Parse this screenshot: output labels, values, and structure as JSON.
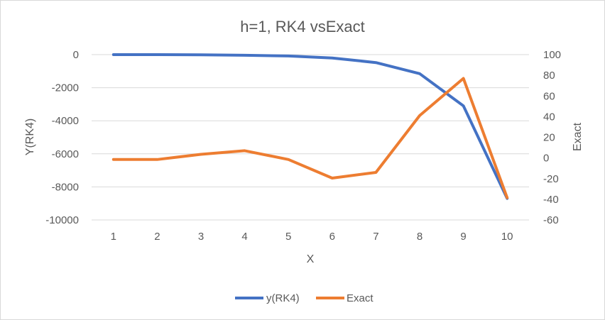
{
  "chart_data": {
    "type": "line",
    "title": "h=1, RK4 vsExact",
    "xlabel": "X",
    "ylabel": "Y(RK4)",
    "y2label": "Exact",
    "categories": [
      "1",
      "2",
      "3",
      "4",
      "5",
      "6",
      "7",
      "8",
      "9",
      "10"
    ],
    "ylim": [
      -10000,
      0
    ],
    "y_ticks": [
      0,
      -2000,
      -4000,
      -6000,
      -8000,
      -10000
    ],
    "y2lim": [
      -60,
      100
    ],
    "y2_ticks": [
      100,
      80,
      60,
      40,
      20,
      0,
      -20,
      -40,
      -60
    ],
    "grid": true,
    "legend": "bottom",
    "series": [
      {
        "name": "y(RK4)",
        "axis": "left",
        "color": "#4472c4",
        "values": [
          0,
          -2,
          -12,
          -40,
          -80,
          -200,
          -480,
          -1150,
          -3100,
          -8700
        ]
      },
      {
        "name": "Exact",
        "axis": "right",
        "color": "#ed7d31",
        "values": [
          -1.5,
          -1.5,
          3.5,
          7,
          -1.5,
          -19.5,
          -14,
          41,
          77,
          -38.5
        ]
      }
    ]
  }
}
